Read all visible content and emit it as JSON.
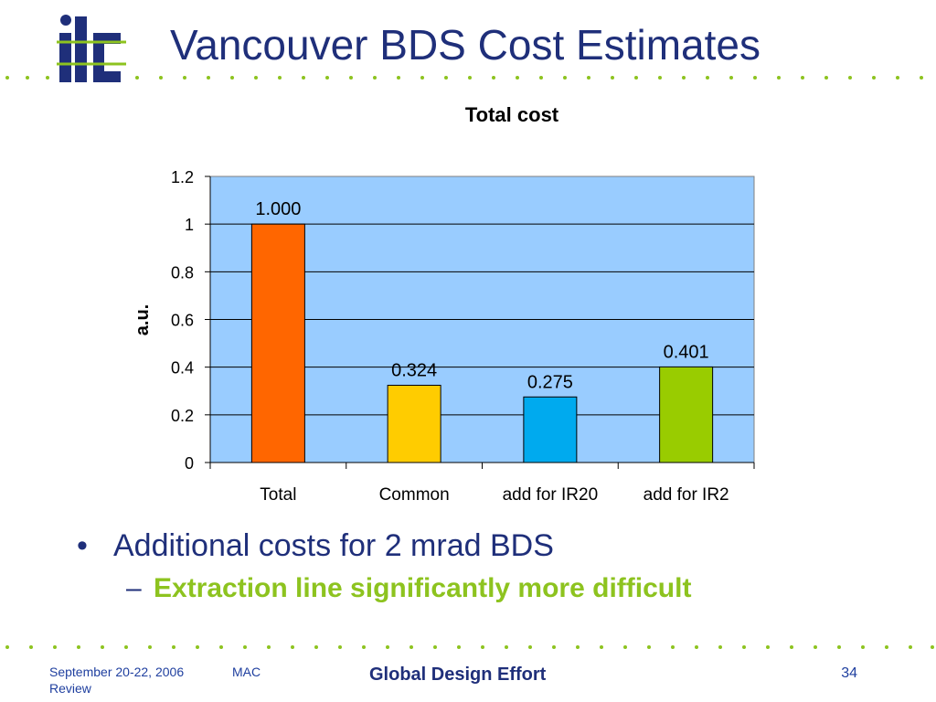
{
  "slide": {
    "title": "Vancouver BDS Cost Estimates",
    "logo_icon": "ilc-logo",
    "accent_color": "#8dc31f",
    "title_color": "#1f2f7a"
  },
  "chart_data": {
    "type": "bar",
    "title": "Total cost",
    "xlabel": "",
    "ylabel": "a.u.",
    "categories": [
      "Total",
      "Common",
      "add for IR20",
      "add for IR2"
    ],
    "values": [
      1.0,
      0.324,
      0.275,
      0.401
    ],
    "data_labels": [
      "1.000",
      "0.324",
      "0.275",
      "0.401"
    ],
    "colors": [
      "#ff6600",
      "#ffcc00",
      "#00aaee",
      "#99cc00"
    ],
    "ylim": [
      0,
      1.2
    ],
    "yticks": [
      0,
      0.2,
      0.4,
      0.6,
      0.8,
      1,
      1.2
    ],
    "ytick_labels": [
      "0",
      "0.2",
      "0.4",
      "0.6",
      "0.8",
      "1",
      "1.2"
    ],
    "plot_background": "#99ccff",
    "grid": true,
    "legend": "none"
  },
  "bullets": {
    "main": "Additional costs for 2 mrad BDS",
    "main_marker": "•",
    "sub": "Extraction line significantly more difficult",
    "sub_marker": "–"
  },
  "footer": {
    "date": "September 20-22, 2006",
    "event": "MAC Review",
    "center": "Global Design Effort",
    "page": "34"
  }
}
